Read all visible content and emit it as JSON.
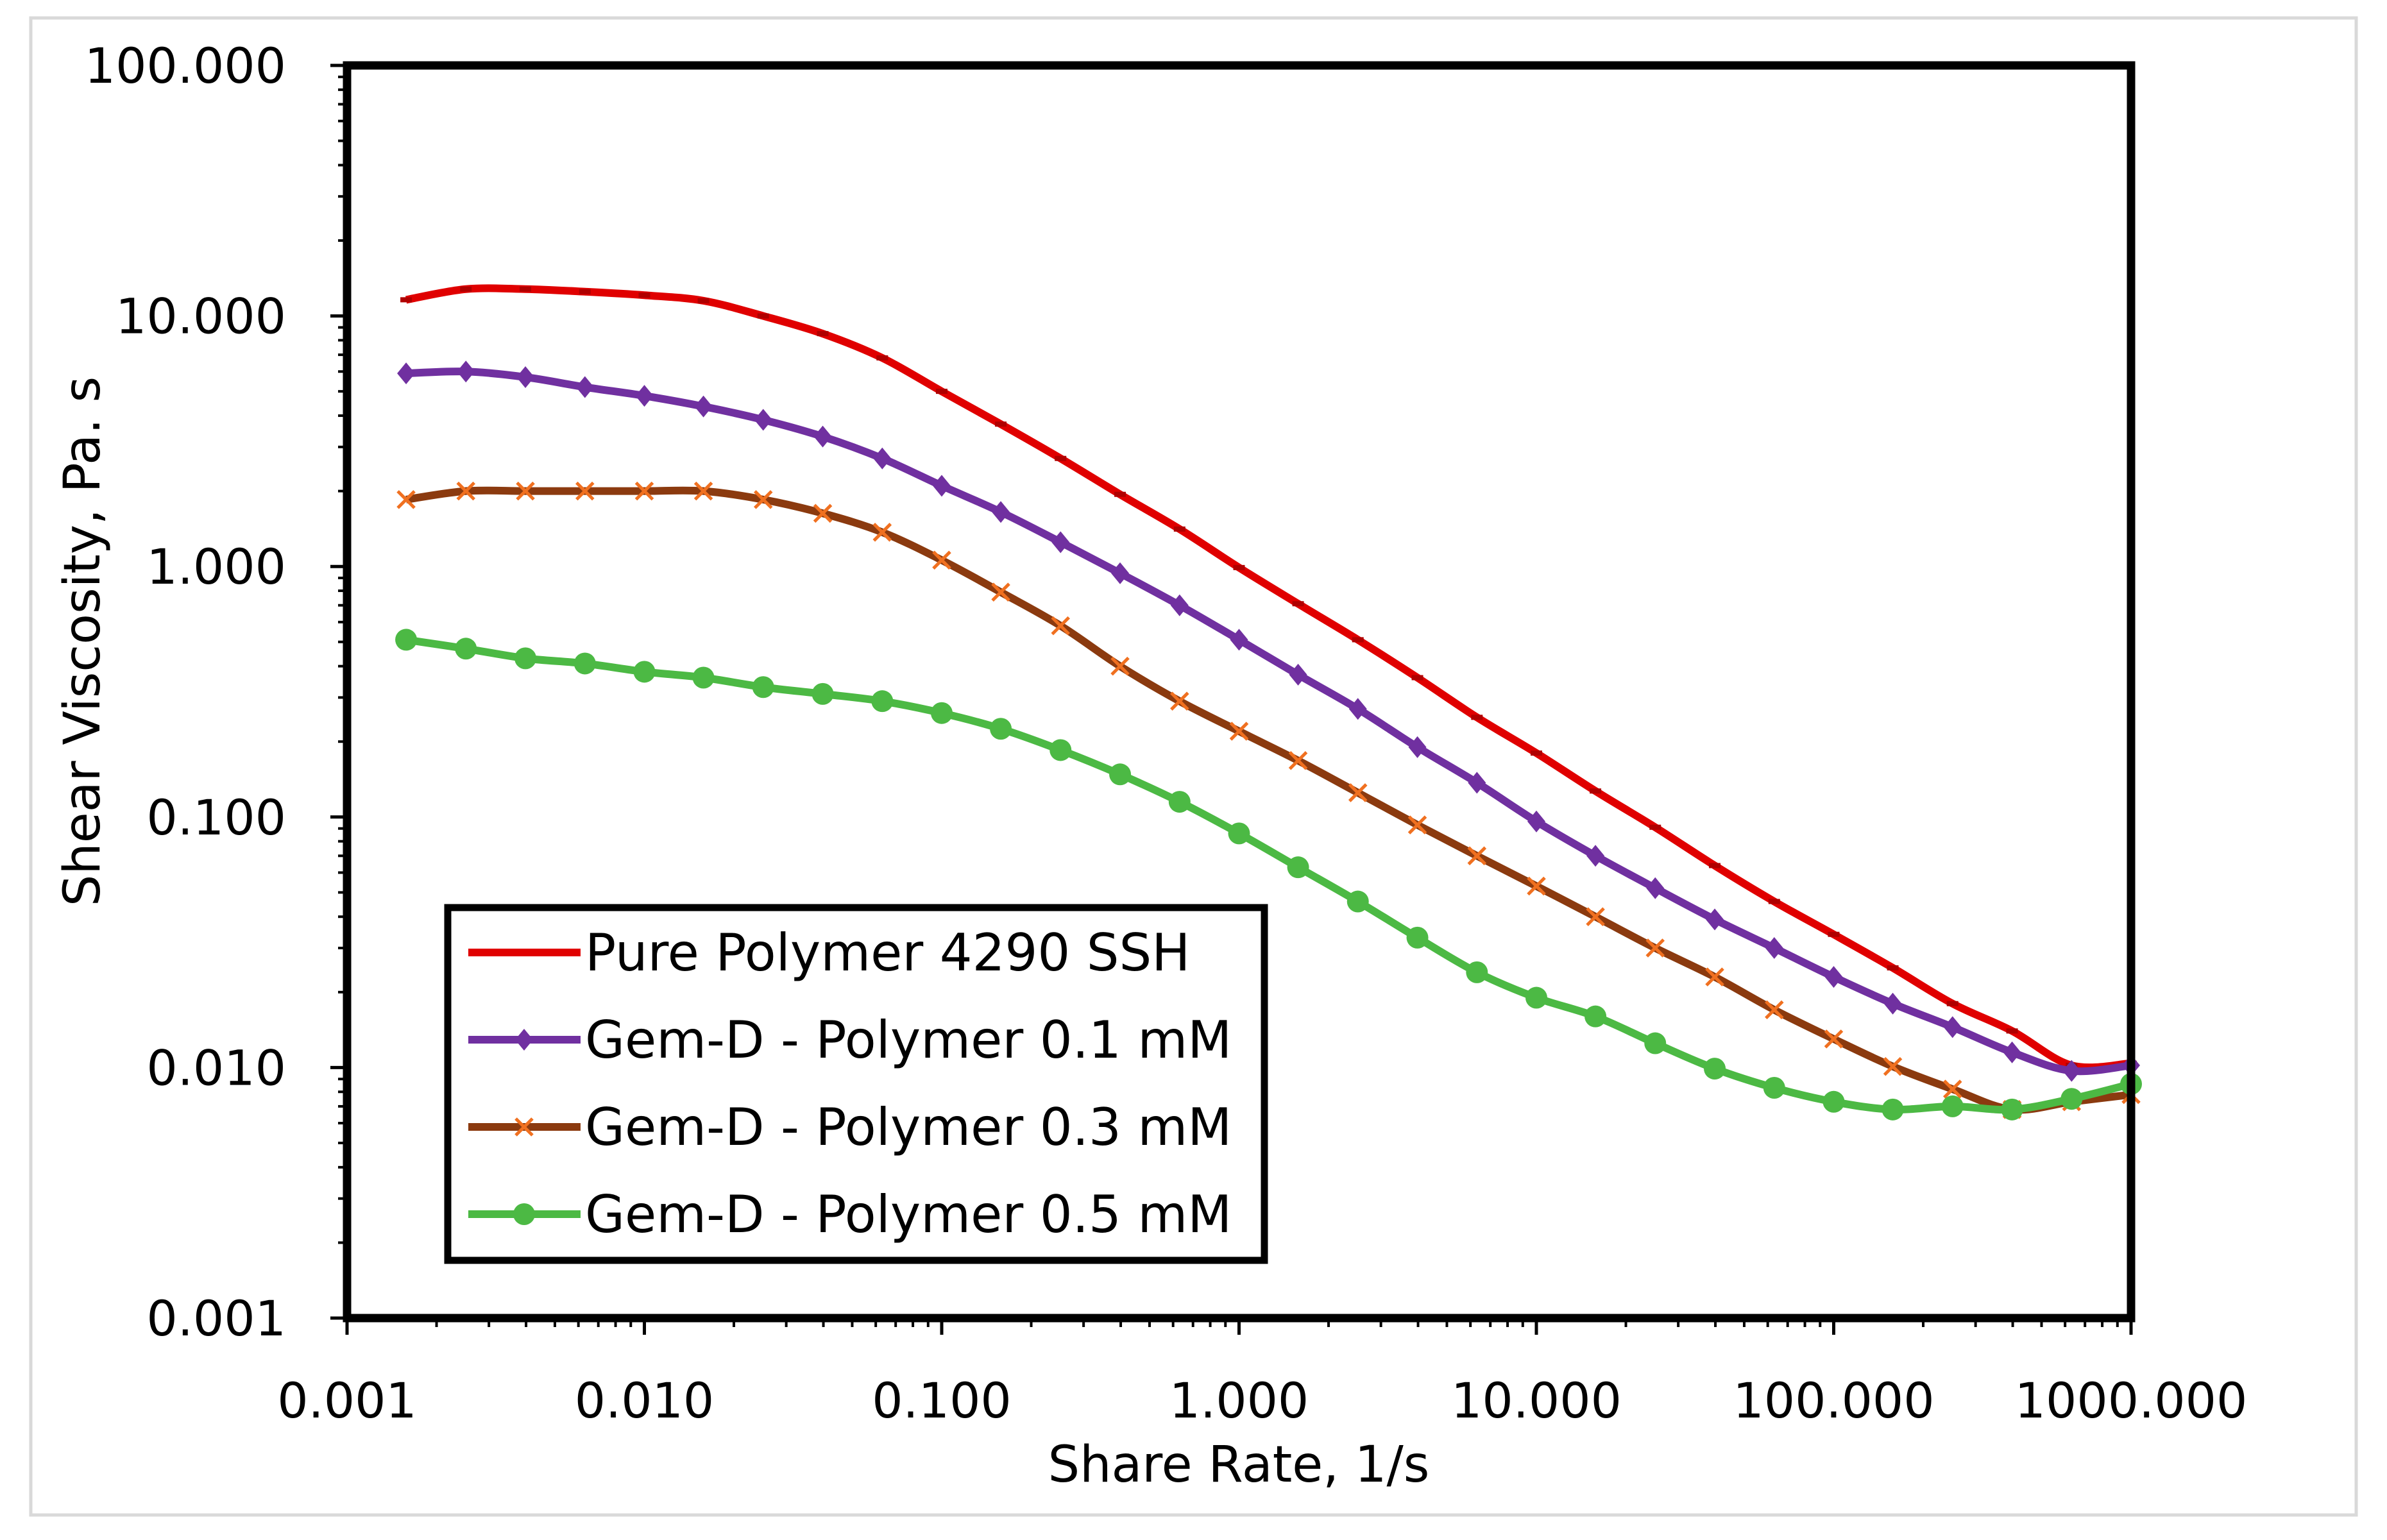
{
  "chart_data": {
    "type": "line",
    "title": "",
    "xlabel": "Share Rate, 1/s",
    "ylabel": "Shear Viscosity, Pa. s",
    "xscale": "log",
    "yscale": "log",
    "xlim": [
      0.001,
      1000
    ],
    "ylim": [
      0.001,
      100
    ],
    "x_tick_labels": [
      "0.001",
      "0.010",
      "0.100",
      "1.000",
      "10.000",
      "100.000",
      "1000.000"
    ],
    "y_tick_labels": [
      "0.001",
      "0.010",
      "0.100",
      "1.000",
      "10.000",
      "100.000"
    ],
    "grid": false,
    "legend_position": "bottom-left",
    "x": [
      0.00158,
      0.00251,
      0.00398,
      0.00631,
      0.01,
      0.0158,
      0.0251,
      0.0398,
      0.0631,
      0.1,
      0.158,
      0.251,
      0.398,
      0.631,
      1,
      1.58,
      2.51,
      3.98,
      6.31,
      10,
      15.8,
      25.1,
      39.8,
      63.1,
      100,
      158,
      251,
      398,
      631,
      1000
    ],
    "series": [
      {
        "name": "Pure Polymer 4290 SSH",
        "color": "#E00000",
        "marker": "dash",
        "values": [
          11.6,
          12.8,
          12.8,
          12.5,
          12.1,
          11.5,
          10.0,
          8.5,
          6.8,
          5.0,
          3.7,
          2.7,
          1.94,
          1.41,
          0.99,
          0.71,
          0.51,
          0.36,
          0.25,
          0.18,
          0.127,
          0.091,
          0.064,
          0.046,
          0.034,
          0.025,
          0.018,
          0.014,
          0.0102,
          0.0104
        ]
      },
      {
        "name": "Gem-D - Polymer 0.1 mM",
        "color": "#7030A0",
        "marker": "diamond",
        "values": [
          5.9,
          6.0,
          5.7,
          5.2,
          4.8,
          4.35,
          3.85,
          3.3,
          2.7,
          2.1,
          1.65,
          1.25,
          0.94,
          0.7,
          0.51,
          0.37,
          0.27,
          0.19,
          0.137,
          0.096,
          0.07,
          0.052,
          0.039,
          0.03,
          0.023,
          0.018,
          0.0145,
          0.0115,
          0.0097,
          0.0102
        ]
      },
      {
        "name": "Gem-D - Polymer 0.3 mM",
        "color": "#8B3A0F",
        "marker_color": "#F07020",
        "marker": "x",
        "values": [
          1.85,
          2.0,
          2.0,
          2.0,
          2.0,
          2.0,
          1.85,
          1.63,
          1.37,
          1.06,
          0.79,
          0.58,
          0.4,
          0.29,
          0.22,
          0.168,
          0.125,
          0.093,
          0.07,
          0.053,
          0.04,
          0.03,
          0.023,
          0.017,
          0.013,
          0.0101,
          0.0082,
          0.0068,
          0.0073,
          0.0078
        ]
      },
      {
        "name": "Gem-D - Polymer 0.5 mM",
        "color": "#4CB944",
        "marker": "circle",
        "values": [
          0.51,
          0.47,
          0.43,
          0.41,
          0.38,
          0.36,
          0.33,
          0.31,
          0.29,
          0.26,
          0.225,
          0.185,
          0.148,
          0.115,
          0.086,
          0.063,
          0.046,
          0.033,
          0.024,
          0.019,
          0.016,
          0.0125,
          0.0099,
          0.0083,
          0.0073,
          0.0068,
          0.007,
          0.0068,
          0.0075,
          0.0086
        ]
      }
    ]
  }
}
